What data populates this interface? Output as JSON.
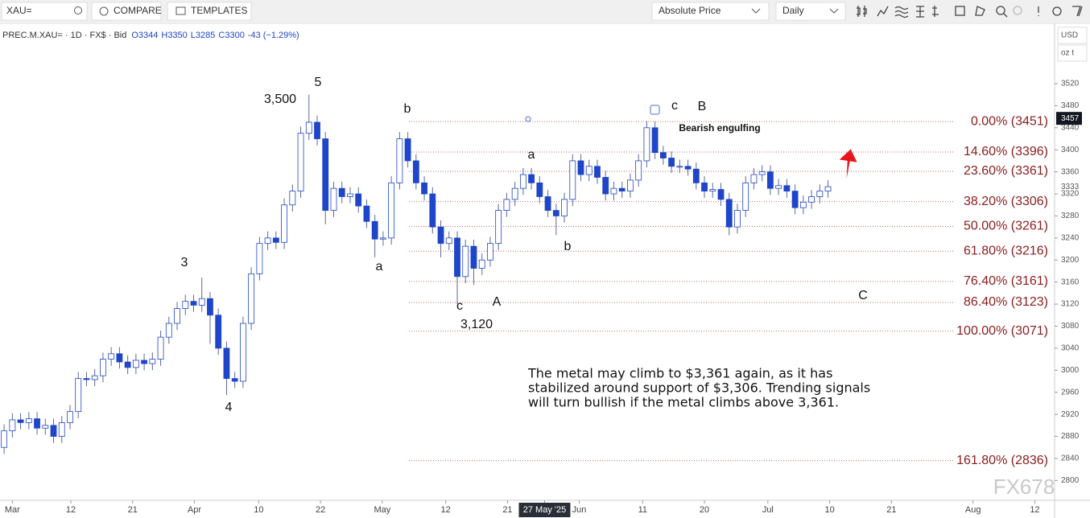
{
  "ui": {
    "symbol": "XAU=",
    "compare": "COMPARE",
    "templates": "TEMPLATES",
    "price_mode": "Absolute Price",
    "interval": "Daily",
    "currency": "USD",
    "unit": "oz t",
    "legend": {
      "name": "PREC.M.XAU= · 1D · FX$ · Bid",
      "open": "O3344",
      "high": "H3350",
      "low": "L3285",
      "close": "C3300",
      "change": "-43 (−1.29%)"
    },
    "watermark": "FX678"
  },
  "chart_data": {
    "type": "candlestick",
    "up_color": "#ffffff",
    "down_color": "#1f45c8",
    "edge_color": "#1f45c8",
    "x": [
      0,
      1,
      2,
      3,
      4,
      5,
      6,
      7,
      8,
      9,
      10,
      11,
      12,
      13,
      14,
      15,
      16,
      17,
      18,
      19,
      20,
      21,
      22,
      23,
      24,
      25,
      26,
      27,
      28,
      29,
      30,
      31,
      32,
      33,
      34,
      35,
      36,
      37,
      38,
      39,
      40,
      41,
      42,
      43,
      44,
      45,
      46,
      47,
      48,
      49,
      50,
      51,
      52,
      53,
      54,
      55,
      56,
      57,
      58,
      59,
      60,
      61,
      62,
      63,
      64,
      65,
      66,
      67,
      68,
      69,
      70,
      71,
      72,
      73,
      74,
      75,
      76,
      77,
      78,
      79,
      80,
      81,
      82,
      83,
      84,
      85,
      86,
      87,
      88,
      89,
      90,
      91,
      92,
      93,
      94,
      95,
      96,
      97,
      98,
      99,
      100
    ],
    "open": [
      2860,
      2890,
      2910,
      2905,
      2912,
      2895,
      2900,
      2880,
      2905,
      2925,
      2985,
      2983,
      2990,
      3020,
      3030,
      3015,
      3005,
      3018,
      3012,
      3020,
      3060,
      3085,
      3112,
      3125,
      3118,
      3130,
      3100,
      3040,
      2985,
      2980,
      3085,
      3175,
      3230,
      3240,
      3232,
      3300,
      3325,
      3430,
      3450,
      3420,
      3290,
      3330,
      3315,
      3320,
      3298,
      3270,
      3238,
      3240,
      3340,
      3420,
      3380,
      3340,
      3320,
      3260,
      3230,
      3240,
      3170,
      3225,
      3185,
      3200,
      3230,
      3290,
      3310,
      3330,
      3355,
      3340,
      3315,
      3290,
      3280,
      3310,
      3380,
      3355,
      3370,
      3350,
      3320,
      3330,
      3325,
      3345,
      3380,
      3440,
      3395,
      3385,
      3370,
      3370,
      3365,
      3340,
      3325,
      3328,
      3310,
      3260,
      3290,
      3340,
      3355,
      3360,
      3330,
      3335,
      3325,
      3295,
      3305,
      3315,
      3325
    ],
    "high": [
      2902,
      2922,
      2922,
      2924,
      2924,
      2912,
      2912,
      2917,
      2937,
      2997,
      2997,
      3002,
      3032,
      3042,
      3042,
      3027,
      3030,
      3030,
      3032,
      3072,
      3097,
      3124,
      3137,
      3137,
      3168,
      3142,
      3112,
      3052,
      2997,
      3097,
      3187,
      3242,
      3252,
      3252,
      3312,
      3337,
      3442,
      3500,
      3462,
      3432,
      3342,
      3342,
      3332,
      3332,
      3310,
      3282,
      3252,
      3352,
      3432,
      3432,
      3392,
      3352,
      3332,
      3272,
      3252,
      3252,
      3237,
      3237,
      3212,
      3242,
      3302,
      3322,
      3342,
      3367,
      3367,
      3352,
      3327,
      3302,
      3322,
      3392,
      3392,
      3382,
      3382,
      3362,
      3342,
      3342,
      3357,
      3392,
      3452,
      3451,
      3407,
      3397,
      3382,
      3382,
      3377,
      3352,
      3340,
      3340,
      3322,
      3302,
      3352,
      3367,
      3372,
      3372,
      3347,
      3347,
      3337,
      3317,
      3327,
      3337,
      3345
    ],
    "low": [
      2848,
      2878,
      2893,
      2893,
      2883,
      2883,
      2868,
      2868,
      2893,
      2913,
      2971,
      2971,
      2978,
      3008,
      3003,
      2993,
      2993,
      3000,
      3000,
      3008,
      3048,
      3073,
      3100,
      3106,
      3106,
      3048,
      3028,
      2955,
      2968,
      2968,
      3073,
      3163,
      3218,
      3220,
      3220,
      3288,
      3313,
      3418,
      3408,
      3265,
      3278,
      3303,
      3303,
      3286,
      3258,
      3205,
      3226,
      3228,
      3328,
      3368,
      3328,
      3308,
      3248,
      3205,
      3218,
      3120,
      3158,
      3155,
      3173,
      3188,
      3218,
      3278,
      3298,
      3318,
      3328,
      3303,
      3278,
      3245,
      3268,
      3298,
      3343,
      3343,
      3338,
      3308,
      3308,
      3313,
      3313,
      3333,
      3368,
      3383,
      3373,
      3358,
      3358,
      3353,
      3328,
      3313,
      3313,
      3298,
      3245,
      3248,
      3278,
      3328,
      3343,
      3318,
      3318,
      3313,
      3283,
      3283,
      3293,
      3303,
      3313
    ],
    "close": [
      2890,
      2910,
      2905,
      2912,
      2895,
      2900,
      2880,
      2905,
      2925,
      2985,
      2983,
      2990,
      3020,
      3030,
      3015,
      3005,
      3018,
      3012,
      3020,
      3060,
      3085,
      3112,
      3125,
      3118,
      3130,
      3100,
      3040,
      2985,
      2980,
      3085,
      3175,
      3230,
      3240,
      3232,
      3300,
      3325,
      3430,
      3450,
      3420,
      3290,
      3330,
      3315,
      3320,
      3298,
      3270,
      3238,
      3240,
      3340,
      3420,
      3380,
      3340,
      3320,
      3260,
      3230,
      3240,
      3170,
      3225,
      3185,
      3200,
      3230,
      3290,
      3310,
      3330,
      3355,
      3340,
      3315,
      3290,
      3280,
      3310,
      3380,
      3355,
      3370,
      3350,
      3320,
      3330,
      3325,
      3345,
      3380,
      3440,
      3395,
      3385,
      3370,
      3370,
      3365,
      3340,
      3325,
      3328,
      3310,
      3260,
      3290,
      3340,
      3355,
      3360,
      3330,
      3335,
      3325,
      3295,
      3305,
      3315,
      3325,
      3333
    ],
    "xlim": [
      -0.5,
      127.5
    ],
    "xticks": [
      {
        "value": 1,
        "label": "Mar"
      },
      {
        "value": 8.1,
        "label": "12"
      },
      {
        "value": 15.6,
        "label": "21"
      },
      {
        "value": 23.1,
        "label": "Apr"
      },
      {
        "value": 30.9,
        "label": "10"
      },
      {
        "value": 38.4,
        "label": "22"
      },
      {
        "value": 45.9,
        "label": "May"
      },
      {
        "value": 53.6,
        "label": "12"
      },
      {
        "value": 61.1,
        "label": "21"
      },
      {
        "value": 65.6,
        "label": "27 May '25"
      },
      {
        "value": 69.8,
        "label": "Jun"
      },
      {
        "value": 77.5,
        "label": "11"
      },
      {
        "value": 85,
        "label": "20"
      },
      {
        "value": 92.7,
        "label": "Jul"
      },
      {
        "value": 100.2,
        "label": "10"
      },
      {
        "value": 107.7,
        "label": "21"
      },
      {
        "value": 117.6,
        "label": "Aug"
      },
      {
        "value": 125.1,
        "label": "12"
      }
    ],
    "ylim": [
      2764,
      3628
    ],
    "yticks": [
      2800,
      2840,
      2880,
      2920,
      2960,
      3000,
      3040,
      3080,
      3120,
      3160,
      3200,
      3240,
      3280,
      3320,
      3360,
      3400,
      3440,
      3480,
      3520
    ],
    "price_tags": [
      3457,
      3333
    ],
    "fib_levels": [
      {
        "value": 3451,
        "label": "0.00% (3451)"
      },
      {
        "value": 3396,
        "label": "14.60% (3396)"
      },
      {
        "value": 3361,
        "label": "23.60% (3361)"
      },
      {
        "value": 3306,
        "label": "38.20% (3306)"
      },
      {
        "value": 3261,
        "label": "50.00% (3261)"
      },
      {
        "value": 3216,
        "label": "61.80% (3216)"
      },
      {
        "value": 3161,
        "label": "76.40% (3161)"
      },
      {
        "value": 3123,
        "label": "86.40% (3123)"
      },
      {
        "value": 3071,
        "label": "100.00% (3071)"
      },
      {
        "value": 2836,
        "label": "161.80% (2836)"
      }
    ],
    "annotations": [
      "5",
      "3,500",
      "b",
      "3",
      "4",
      "a",
      "a",
      "b",
      "c",
      "A",
      "3,120",
      "c",
      "B",
      "Bearish engulfing",
      "C"
    ],
    "note": [
      "The metal may climb to $3,361 again, as it has",
      "stabilized around support of $3,306. Trending signals",
      "will turn bullish if the metal climbs above 3,361."
    ]
  }
}
